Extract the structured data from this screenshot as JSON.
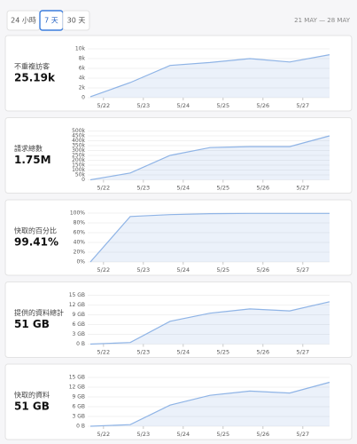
{
  "tabs": [
    "24 小時",
    "7 天",
    "30 天"
  ],
  "selected_tab": 1,
  "date_range": "21 MAY — 28 MAY",
  "cards": [
    {
      "label": "不重複訪客",
      "value": "25.19k",
      "chart": {
        "type": "line",
        "color": "#8fb4e6",
        "area": true,
        "grid": true,
        "x": [
          21.67,
          22.67,
          23.67,
          24.67,
          25.67,
          26.67,
          27.67
        ],
        "xlim": [
          21.67,
          27.67
        ],
        "xticks": [
          {
            "value": 22,
            "label": "5/22"
          },
          {
            "value": 23,
            "label": "5/23"
          },
          {
            "value": 24,
            "label": "5/24"
          },
          {
            "value": 25,
            "label": "5/25"
          },
          {
            "value": 26,
            "label": "5/26"
          },
          {
            "value": 27,
            "label": "5/27"
          }
        ],
        "values": [
          200,
          3100,
          6600,
          7200,
          8000,
          7300,
          8800
        ],
        "ylim": [
          0,
          10000
        ],
        "yticks": [
          0,
          {
            "value": 2000,
            "label": "2k"
          },
          {
            "value": 4000,
            "label": "4k"
          },
          {
            "value": 6000,
            "label": "6k"
          },
          {
            "value": 8000,
            "label": "8k"
          },
          {
            "value": 10000,
            "label": "10k"
          }
        ]
      }
    },
    {
      "label": "請求總數",
      "value": "1.75M",
      "chart": {
        "type": "line",
        "color": "#8fb4e6",
        "area": true,
        "grid": true,
        "x": [
          21.67,
          22.67,
          23.67,
          24.67,
          25.67,
          26.67,
          27.67
        ],
        "xlim": [
          21.67,
          27.67
        ],
        "xticks": [
          {
            "value": 22,
            "label": "5/22"
          },
          {
            "value": 23,
            "label": "5/23"
          },
          {
            "value": 24,
            "label": "5/24"
          },
          {
            "value": 25,
            "label": "5/25"
          },
          {
            "value": 26,
            "label": "5/26"
          },
          {
            "value": 27,
            "label": "5/27"
          }
        ],
        "values": [
          0,
          70000,
          250000,
          330000,
          340000,
          340000,
          450000
        ],
        "ylim": [
          0,
          500000
        ],
        "yticks": [
          0,
          {
            "value": 50000,
            "label": "50k"
          },
          {
            "value": 100000,
            "label": "100k"
          },
          {
            "value": 150000,
            "label": "150k"
          },
          {
            "value": 200000,
            "label": "200k"
          },
          {
            "value": 250000,
            "label": "250k"
          },
          {
            "value": 300000,
            "label": "300k"
          },
          {
            "value": 350000,
            "label": "350k"
          },
          {
            "value": 400000,
            "label": "400k"
          },
          {
            "value": 450000,
            "label": "450k"
          },
          {
            "value": 500000,
            "label": "500k"
          }
        ]
      }
    },
    {
      "label": "快取的百分比",
      "value": "99.41%",
      "chart": {
        "type": "line",
        "color": "#8fb4e6",
        "area": true,
        "grid": true,
        "x": [
          21.67,
          22.67,
          23.67,
          24.67,
          25.67,
          26.67,
          27.67
        ],
        "xlim": [
          21.67,
          27.67
        ],
        "xticks": [
          {
            "value": 22,
            "label": "5/22"
          },
          {
            "value": 23,
            "label": "5/23"
          },
          {
            "value": 24,
            "label": "5/24"
          },
          {
            "value": 25,
            "label": "5/25"
          },
          {
            "value": 26,
            "label": "5/26"
          },
          {
            "value": 27,
            "label": "5/27"
          }
        ],
        "values": [
          0,
          93,
          97,
          99,
          99.5,
          99.5,
          99.5
        ],
        "ylim": [
          0,
          100
        ],
        "yticks": [
          {
            "value": 0,
            "label": "0%"
          },
          {
            "value": 20,
            "label": "20%"
          },
          {
            "value": 40,
            "label": "40%"
          },
          {
            "value": 60,
            "label": "60%"
          },
          {
            "value": 80,
            "label": "80%"
          },
          {
            "value": 100,
            "label": "100%"
          }
        ]
      }
    },
    {
      "label": "提供的資料總計",
      "value": "51 GB",
      "chart": {
        "type": "line",
        "color": "#8fb4e6",
        "area": true,
        "grid": true,
        "x": [
          21.67,
          22.67,
          23.67,
          24.67,
          25.67,
          26.67,
          27.67
        ],
        "xlim": [
          21.67,
          27.67
        ],
        "xticks": [
          {
            "value": 22,
            "label": "5/22"
          },
          {
            "value": 23,
            "label": "5/23"
          },
          {
            "value": 24,
            "label": "5/24"
          },
          {
            "value": 25,
            "label": "5/25"
          },
          {
            "value": 26,
            "label": "5/26"
          },
          {
            "value": 27,
            "label": "5/27"
          }
        ],
        "values": [
          0,
          0.5,
          7,
          9.5,
          10.8,
          10.2,
          13
        ],
        "ylim": [
          0,
          15
        ],
        "yticks": [
          {
            "value": 0,
            "label": "0 B"
          },
          {
            "value": 3,
            "label": "3 GB"
          },
          {
            "value": 6,
            "label": "6 GB"
          },
          {
            "value": 9,
            "label": "9 GB"
          },
          {
            "value": 12,
            "label": "12 GB"
          },
          {
            "value": 15,
            "label": "15 GB"
          }
        ]
      }
    },
    {
      "label": "快取的資料",
      "value": "51 GB",
      "chart": {
        "type": "line",
        "color": "#8fb4e6",
        "area": true,
        "grid": true,
        "x": [
          21.67,
          22.67,
          23.67,
          24.67,
          25.67,
          26.67,
          27.67
        ],
        "xlim": [
          21.67,
          27.67
        ],
        "xticks": [
          {
            "value": 22,
            "label": "5/22"
          },
          {
            "value": 23,
            "label": "5/23"
          },
          {
            "value": 24,
            "label": "5/24"
          },
          {
            "value": 25,
            "label": "5/25"
          },
          {
            "value": 26,
            "label": "5/26"
          },
          {
            "value": 27,
            "label": "5/27"
          }
        ],
        "values": [
          0,
          0.5,
          6.5,
          9.5,
          10.8,
          10.2,
          13.5
        ],
        "ylim": [
          0,
          15
        ],
        "yticks": [
          {
            "value": 0,
            "label": "0 B"
          },
          {
            "value": 3,
            "label": "3 GB"
          },
          {
            "value": 6,
            "label": "6 GB"
          },
          {
            "value": 9,
            "label": "9 GB"
          },
          {
            "value": 12,
            "label": "12 GB"
          },
          {
            "value": 15,
            "label": "15 GB"
          }
        ]
      }
    }
  ]
}
